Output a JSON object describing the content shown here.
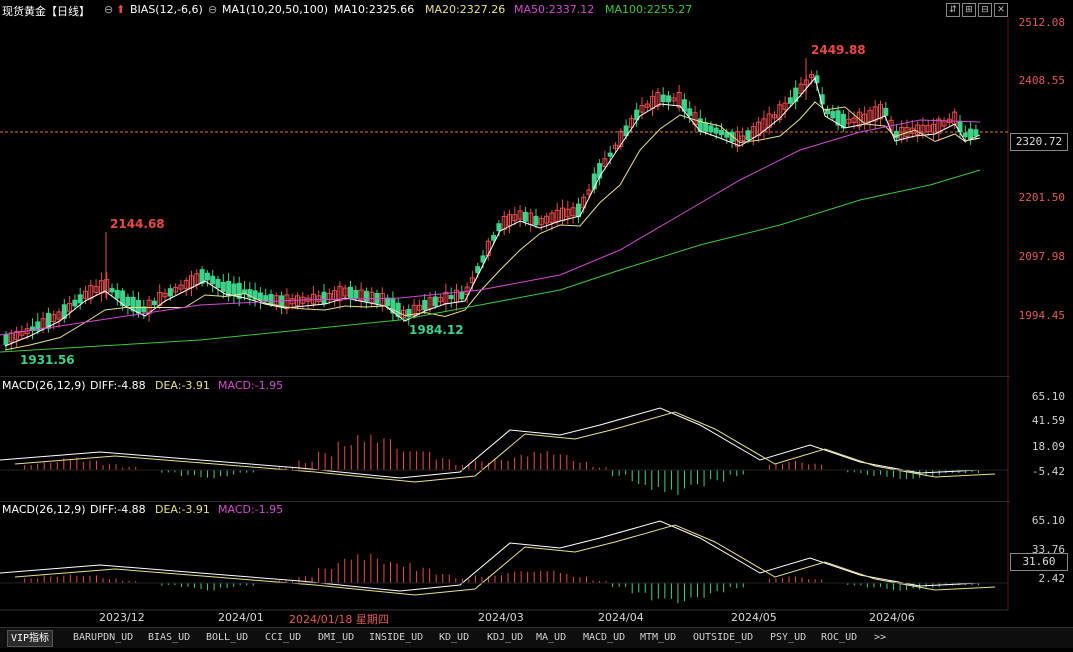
{
  "header": {
    "title": "现货黄金【日线】",
    "bias_label": "BIAS(12,-6,6)",
    "ma_label": "MA1(10,20,50,100)",
    "ma10": "MA10:2325.66",
    "ma20": "MA20:2327.26",
    "ma50": "MA50:2337.12",
    "ma100": "MA100:2255.27"
  },
  "window_controls": [
    "⇵",
    "⊞",
    "⊟",
    "✕"
  ],
  "price_axis": [
    "2512.08",
    "2408.55",
    "2201.50",
    "2097.98",
    "1994.45"
  ],
  "current_price": "2320.72",
  "annotations": {
    "high": "2449.88",
    "mid_high": "2144.68",
    "low": "1931.56",
    "mid_low": "1984.12"
  },
  "macd1": {
    "label": "MACD(26,12,9)",
    "diff": "DIFF:-4.88",
    "dea": "DEA:-3.91",
    "macd": "MACD:-1.95",
    "axis": [
      "65.10",
      "41.59",
      "18.09",
      "-5.42"
    ]
  },
  "macd2": {
    "label": "MACD(26,12,9)",
    "diff": "DIFF:-4.88",
    "dea": "DEA:-3.91",
    "macd": "MACD:-1.95",
    "axis": [
      "65.10",
      "33.76",
      "2.42"
    ],
    "current": "31.60"
  },
  "x_axis": [
    "2023/12",
    "2024/01",
    "2024/03",
    "2024/04",
    "2024/05",
    "2024/06"
  ],
  "cursor_date": "2024/01/18 星期四",
  "tabs": [
    "VIP指标",
    "BARUPDN_UD",
    "BIAS_UD",
    "BOLL_UD",
    "CCI_UD",
    "DMI_UD",
    "INSIDE_UD",
    "KD_UD",
    "KDJ_UD",
    "MA_UD",
    "MACD_UD",
    "MTM_UD",
    "OUTSIDE_UD",
    "PSY_UD",
    "ROC_UD",
    ">>"
  ],
  "colors": {
    "up": "#e84a4a",
    "down": "#3cd28a",
    "ma10": "#ffffff",
    "ma20": "#e8e08a",
    "ma50": "#d24ad2",
    "ma100": "#3cc83c",
    "accent": "#e05a5a"
  }
}
